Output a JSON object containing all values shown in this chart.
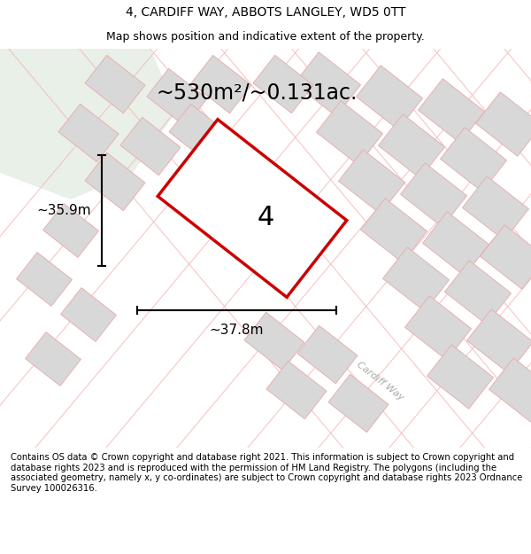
{
  "title_line1": "4, CARDIFF WAY, ABBOTS LANGLEY, WD5 0TT",
  "title_line2": "Map shows position and indicative extent of the property.",
  "area_label": "~530m²/~0.131ac.",
  "property_number": "4",
  "dim_vertical": "~35.9m",
  "dim_horizontal": "~37.8m",
  "street_label": "Cardiff Way",
  "copyright_text": "Contains OS data © Crown copyright and database right 2021. This information is subject to Crown copyright and database rights 2023 and is reproduced with the permission of HM Land Registry. The polygons (including the associated geometry, namely x, y co-ordinates) are subject to Crown copyright and database rights 2023 Ordnance Survey 100026316.",
  "bg_map_color": "#f2f2f2",
  "bg_green_color": "#e8f0e8",
  "plot_outline_color": "#cc0000",
  "road_line_color": "#f5b8b8",
  "block_color": "#d8d8d8",
  "block_outline_color": "#e8b0b0",
  "title_fontsize": 10,
  "subtitle_fontsize": 9,
  "copyright_fontsize": 7.2,
  "area_fontsize": 17,
  "number_fontsize": 22,
  "dim_fontsize": 11
}
